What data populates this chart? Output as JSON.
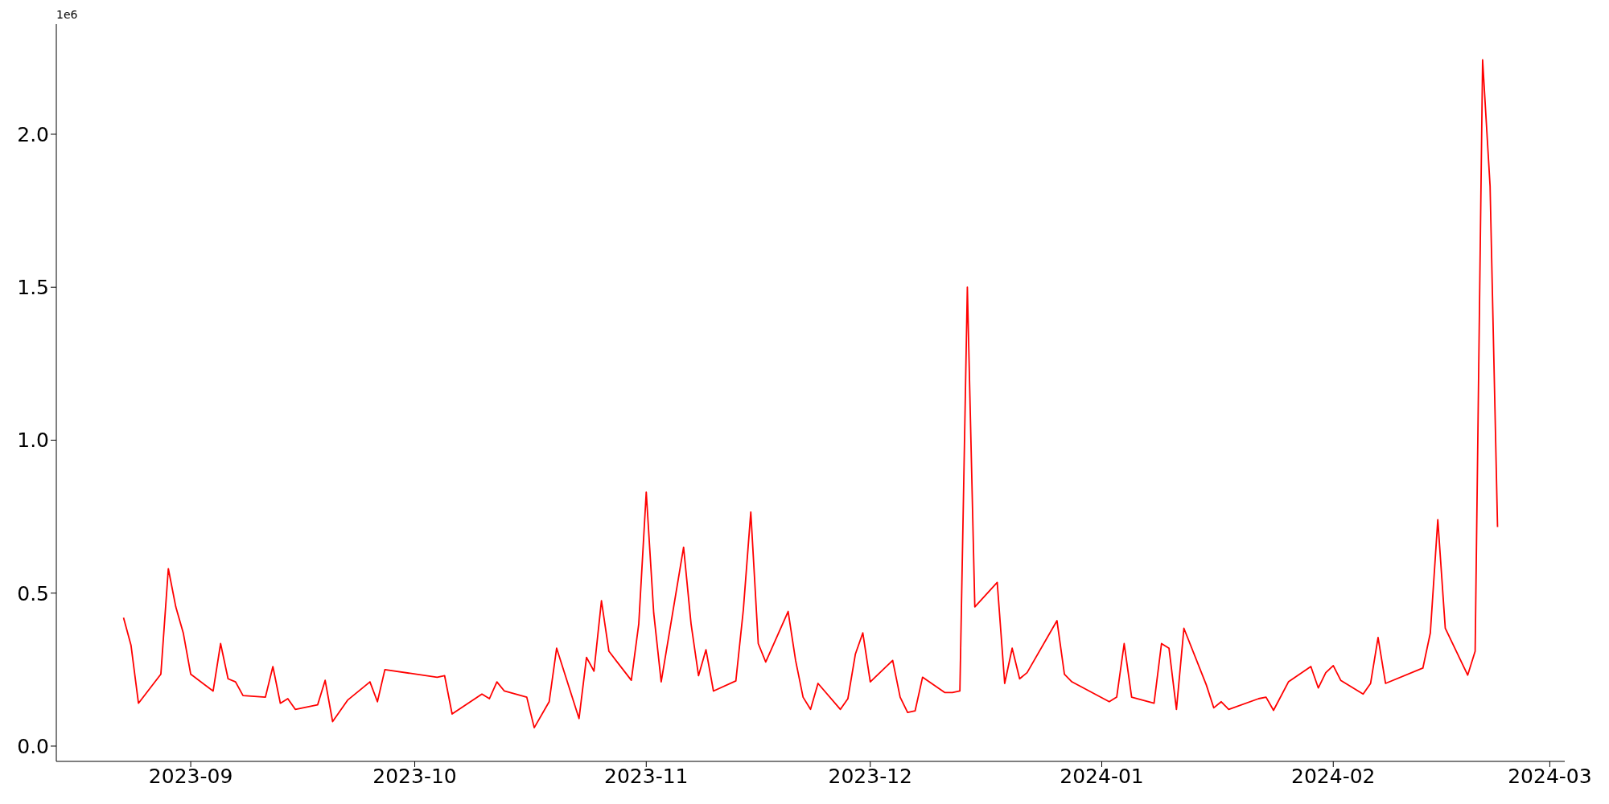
{
  "chart_data": {
    "type": "line",
    "annotations": [
      "1e6"
    ],
    "x": [
      "2023-08-23",
      "2023-08-24",
      "2023-08-25",
      "2023-08-28",
      "2023-08-29",
      "2023-08-30",
      "2023-08-31",
      "2023-09-01",
      "2023-09-04",
      "2023-09-05",
      "2023-09-06",
      "2023-09-07",
      "2023-09-08",
      "2023-09-11",
      "2023-09-12",
      "2023-09-13",
      "2023-09-14",
      "2023-09-15",
      "2023-09-18",
      "2023-09-19",
      "2023-09-20",
      "2023-09-22",
      "2023-09-25",
      "2023-09-26",
      "2023-09-27",
      "2023-10-04",
      "2023-10-05",
      "2023-10-06",
      "2023-10-10",
      "2023-10-11",
      "2023-10-12",
      "2023-10-13",
      "2023-10-16",
      "2023-10-17",
      "2023-10-19",
      "2023-10-20",
      "2023-10-23",
      "2023-10-24",
      "2023-10-25",
      "2023-10-26",
      "2023-10-27",
      "2023-10-30",
      "2023-10-31",
      "2023-11-01",
      "2023-11-02",
      "2023-11-03",
      "2023-11-06",
      "2023-11-07",
      "2023-11-08",
      "2023-11-09",
      "2023-11-10",
      "2023-11-13",
      "2023-11-14",
      "2023-11-15",
      "2023-11-16",
      "2023-11-17",
      "2023-11-20",
      "2023-11-21",
      "2023-11-22",
      "2023-11-23",
      "2023-11-24",
      "2023-11-27",
      "2023-11-28",
      "2023-11-29",
      "2023-11-30",
      "2023-12-01",
      "2023-12-04",
      "2023-12-05",
      "2023-12-06",
      "2023-12-07",
      "2023-12-08",
      "2023-12-11",
      "2023-12-12",
      "2023-12-13",
      "2023-12-14",
      "2023-12-15",
      "2023-12-18",
      "2023-12-19",
      "2023-12-20",
      "2023-12-21",
      "2023-12-22",
      "2023-12-26",
      "2023-12-27",
      "2023-12-28",
      "2024-01-02",
      "2024-01-03",
      "2024-01-04",
      "2024-01-05",
      "2024-01-08",
      "2024-01-09",
      "2024-01-10",
      "2024-01-11",
      "2024-01-12",
      "2024-01-15",
      "2024-01-16",
      "2024-01-17",
      "2024-01-18",
      "2024-01-22",
      "2024-01-23",
      "2024-01-24",
      "2024-01-26",
      "2024-01-29",
      "2024-01-30",
      "2024-01-31",
      "2024-02-01",
      "2024-02-02",
      "2024-02-05",
      "2024-02-06",
      "2024-02-07",
      "2024-02-08",
      "2024-02-13",
      "2024-02-14",
      "2024-02-15",
      "2024-02-16",
      "2024-02-19",
      "2024-02-20",
      "2024-02-21",
      "2024-02-22",
      "2024-02-23"
    ],
    "series": [
      {
        "color": "#ff0000",
        "values": [
          0.42,
          0.33,
          0.14,
          0.235,
          0.58,
          0.455,
          0.37,
          0.235,
          0.18,
          0.335,
          0.22,
          0.21,
          0.165,
          0.16,
          0.26,
          0.14,
          0.155,
          0.12,
          0.135,
          0.215,
          0.08,
          0.15,
          0.21,
          0.145,
          0.25,
          0.225,
          0.23,
          0.105,
          0.17,
          0.155,
          0.21,
          0.18,
          0.16,
          0.06,
          0.145,
          0.32,
          0.09,
          0.29,
          0.245,
          0.475,
          0.31,
          0.215,
          0.4,
          0.83,
          0.435,
          0.21,
          0.65,
          0.4,
          0.23,
          0.315,
          0.18,
          0.213,
          0.445,
          0.765,
          0.335,
          0.275,
          0.44,
          0.28,
          0.16,
          0.12,
          0.205,
          0.12,
          0.155,
          0.3,
          0.37,
          0.21,
          0.28,
          0.16,
          0.11,
          0.115,
          0.225,
          0.175,
          0.175,
          0.18,
          1.5,
          0.455,
          0.535,
          0.205,
          0.32,
          0.22,
          0.24,
          0.41,
          0.235,
          0.21,
          0.145,
          0.16,
          0.335,
          0.16,
          0.14,
          0.335,
          0.32,
          0.12,
          0.385,
          0.2,
          0.125,
          0.145,
          0.12,
          0.155,
          0.16,
          0.117,
          0.21,
          0.26,
          0.19,
          0.24,
          0.263,
          0.215,
          0.17,
          0.205,
          0.355,
          0.205,
          0.255,
          0.37,
          0.74,
          0.385,
          0.232,
          0.31,
          2.243,
          1.83,
          0.716
        ]
      }
    ],
    "xlim": [
      "2023-08-14",
      "2024-03-03"
    ],
    "xticks": [
      {
        "value": "2023-09-01",
        "label": "2023-09"
      },
      {
        "value": "2023-10-01",
        "label": "2023-10"
      },
      {
        "value": "2023-11-01",
        "label": "2023-11"
      },
      {
        "value": "2023-12-01",
        "label": "2023-12"
      },
      {
        "value": "2024-01-01",
        "label": "2024-01"
      },
      {
        "value": "2024-02-01",
        "label": "2024-02"
      },
      {
        "value": "2024-03-01",
        "label": "2024-03"
      }
    ],
    "ylim": [
      -0.05,
      2.36
    ],
    "yticks": [
      {
        "value": 0,
        "label": "0.0"
      },
      {
        "value": 0.5,
        "label": "0.5"
      },
      {
        "value": 1,
        "label": "1.0"
      },
      {
        "value": 1.5,
        "label": "1.5"
      },
      {
        "value": 2,
        "label": "2.0"
      }
    ]
  }
}
